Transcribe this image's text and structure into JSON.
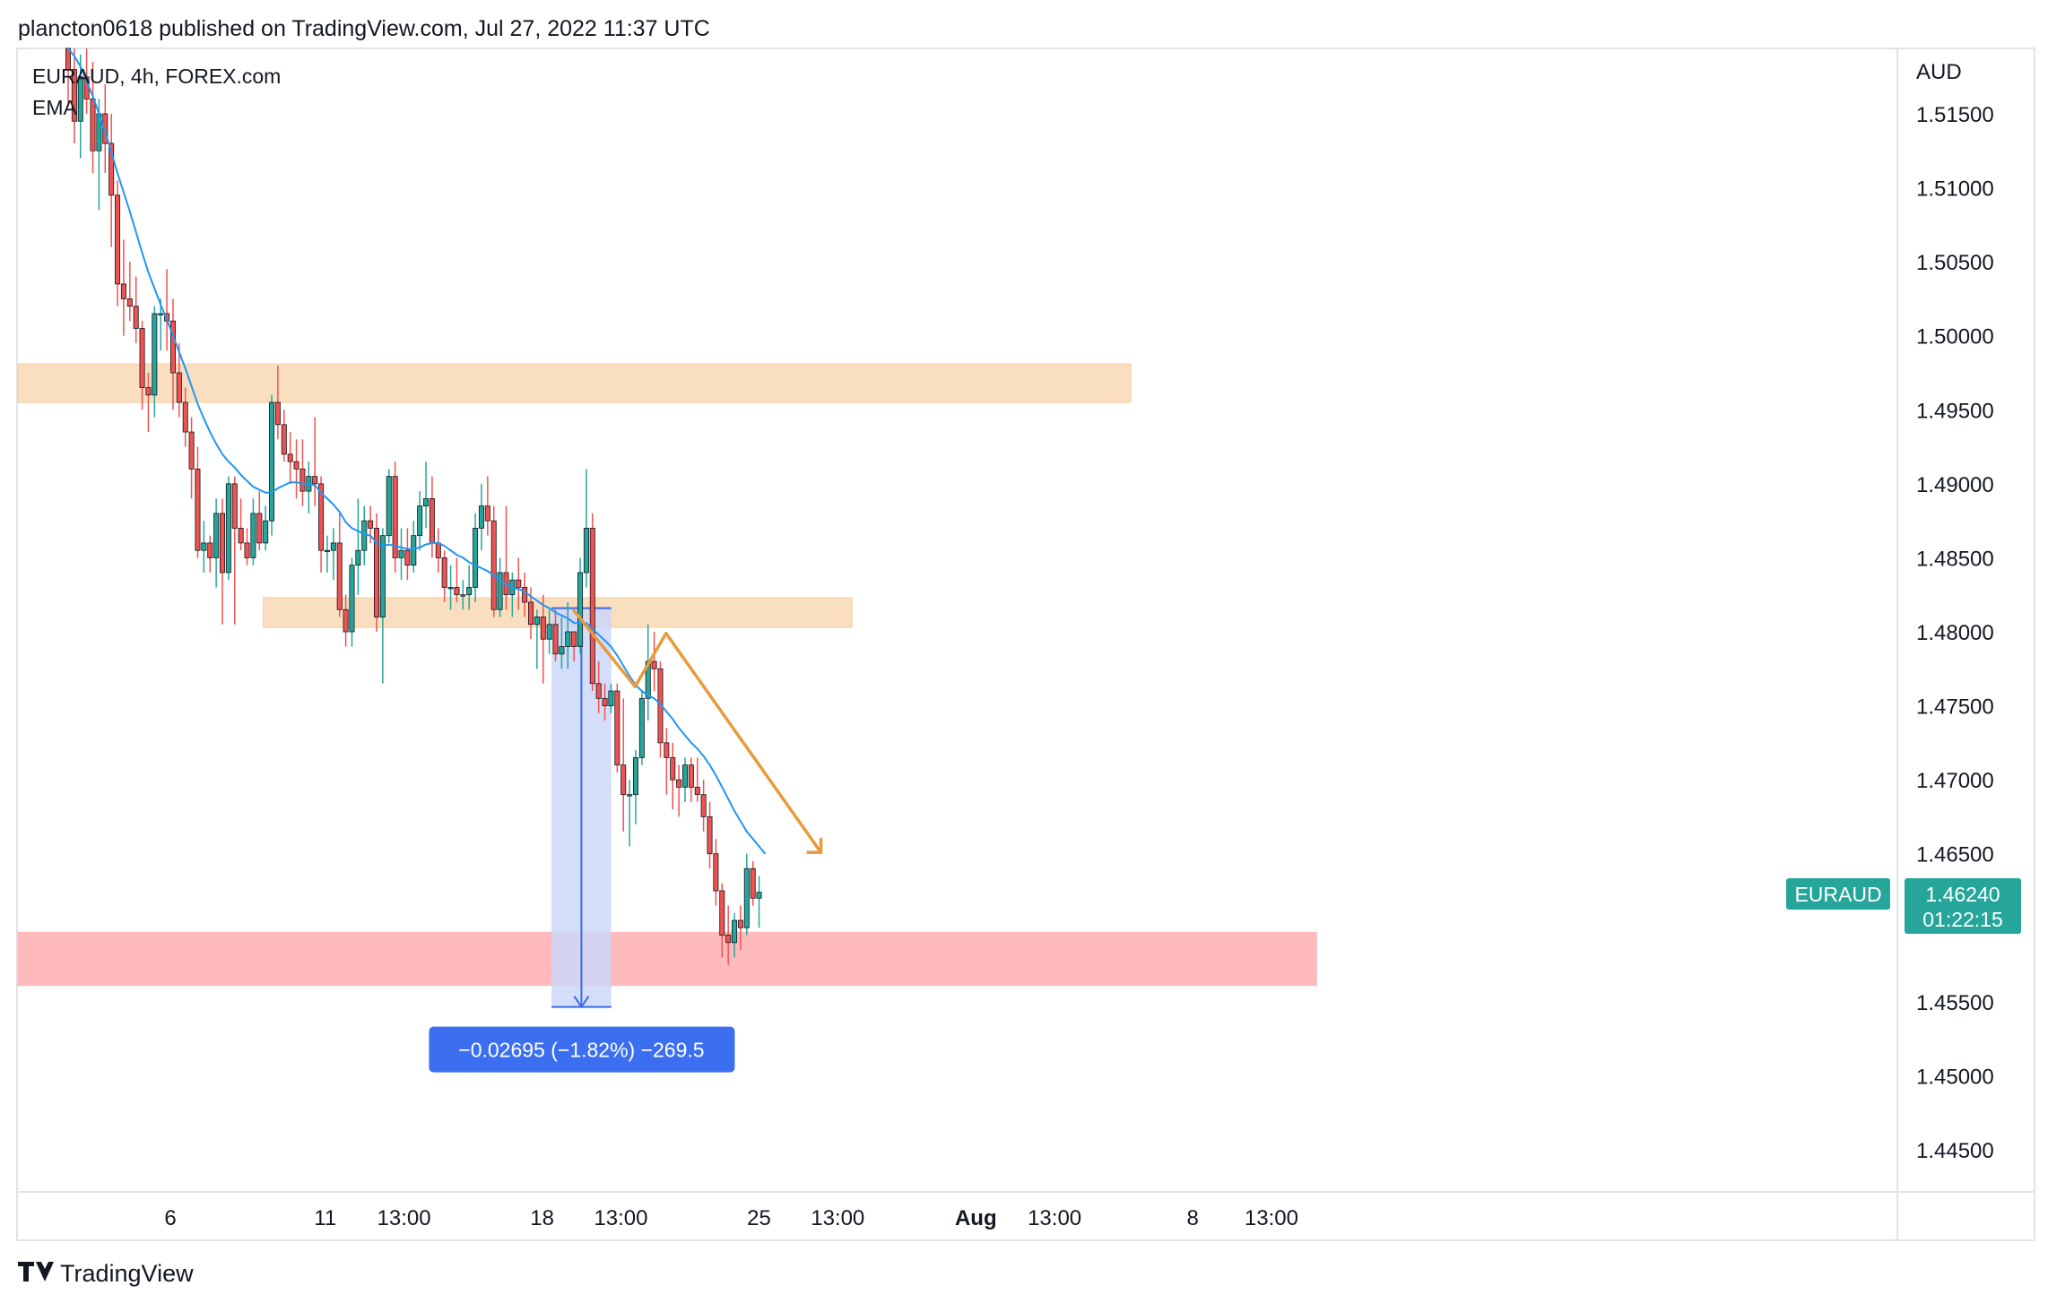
{
  "header": {
    "published_by": "plancton0618 published on TradingView.com, Jul 27, 2022 11:37 UTC"
  },
  "legend": {
    "symbol_line": "EURAUD, 4h, FOREX.com",
    "indicator": "EMA"
  },
  "footer": {
    "brand": "TradingView"
  },
  "colors": {
    "bull": "#26a69a",
    "bear": "#ef5350",
    "ema": "#2196f3",
    "orange_zone": "#f9d9b4",
    "red_zone": "#ffb8b8",
    "measure_fill": "#cdd7f8",
    "measure_line": "#3c6ae8",
    "measure_label_bg": "#3c6ff0",
    "path_line": "#e89a3c",
    "price_badge": "#26a69a"
  },
  "badges": {
    "symbol": "EURAUD",
    "price": "1.46240",
    "countdown": "01:22:15"
  },
  "measure": {
    "label": "−0.02695 (−1.82%) −269.5",
    "from_price": 1.4816,
    "to_price": 1.45465,
    "from_date": "2022-07-19",
    "to_date": "2022-07-20"
  },
  "chart_data": {
    "type": "candlestick",
    "symbol": "EURAUD",
    "interval": "4h",
    "exchange": "FOREX.com",
    "y_axis_label": "AUD",
    "ylim": [
      1.4405,
      1.5195
    ],
    "y_ticks": [
      "1.51500",
      "1.51000",
      "1.50500",
      "1.50000",
      "1.49500",
      "1.49000",
      "1.48500",
      "1.48000",
      "1.47500",
      "1.47000",
      "1.46500",
      "1.45500",
      "1.45000",
      "1.44500"
    ],
    "x_ticks": [
      {
        "label": "6",
        "date": "2022-07-06"
      },
      {
        "label": "11",
        "date": "2022-07-11"
      },
      {
        "label": "13:00",
        "date": "2022-07-13"
      },
      {
        "label": "18",
        "date": "2022-07-18"
      },
      {
        "label": "13:00",
        "date": "2022-07-20"
      },
      {
        "label": "25",
        "date": "2022-07-25"
      },
      {
        "label": "13:00",
        "date": "2022-07-27"
      },
      {
        "label": "Aug",
        "date": "2022-08-01",
        "bold": true
      },
      {
        "label": "13:00",
        "date": "2022-08-03"
      },
      {
        "label": "8",
        "date": "2022-08-08"
      },
      {
        "label": "13:00",
        "date": "2022-08-10"
      }
    ],
    "zones": [
      {
        "kind": "resistance",
        "y_low": 1.4955,
        "y_high": 1.4981,
        "x_from": "2022-07-01",
        "x_to": "2022-08-06"
      },
      {
        "kind": "resistance",
        "y_low": 1.4803,
        "y_high": 1.4823,
        "x_from": "2022-07-09",
        "x_to": "2022-07-28"
      },
      {
        "kind": "support",
        "y_low": 1.4561,
        "y_high": 1.4597,
        "x_from": "2022-07-01",
        "x_to": "2022-08-12"
      }
    ],
    "path": [
      {
        "date": "2022-07-19",
        "price": 1.4815
      },
      {
        "date": "2022-07-21",
        "price": 1.4763
      },
      {
        "date": "2022-07-22",
        "price": 1.4799
      },
      {
        "date": "2022-07-27",
        "price": 1.4651
      }
    ],
    "candles": [
      {
        "o": 1.5195,
        "h": 1.521,
        "l": 1.5155,
        "c": 1.518
      },
      {
        "o": 1.518,
        "h": 1.52,
        "l": 1.513,
        "c": 1.5145
      },
      {
        "o": 1.5145,
        "h": 1.519,
        "l": 1.512,
        "c": 1.5175
      },
      {
        "o": 1.5175,
        "h": 1.5205,
        "l": 1.515,
        "c": 1.516
      },
      {
        "o": 1.516,
        "h": 1.5185,
        "l": 1.511,
        "c": 1.5125
      },
      {
        "o": 1.5125,
        "h": 1.516,
        "l": 1.5085,
        "c": 1.515
      },
      {
        "o": 1.515,
        "h": 1.517,
        "l": 1.511,
        "c": 1.513
      },
      {
        "o": 1.513,
        "h": 1.515,
        "l": 1.506,
        "c": 1.5095
      },
      {
        "o": 1.5095,
        "h": 1.5105,
        "l": 1.502,
        "c": 1.5035
      },
      {
        "o": 1.5035,
        "h": 1.5065,
        "l": 1.5,
        "c": 1.5025
      },
      {
        "o": 1.5025,
        "h": 1.505,
        "l": 1.501,
        "c": 1.502
      },
      {
        "o": 1.502,
        "h": 1.504,
        "l": 1.4995,
        "c": 1.5005
      },
      {
        "o": 1.5005,
        "h": 1.501,
        "l": 1.495,
        "c": 1.4965
      },
      {
        "o": 1.4965,
        "h": 1.4975,
        "l": 1.4935,
        "c": 1.496
      },
      {
        "o": 1.496,
        "h": 1.502,
        "l": 1.4945,
        "c": 1.5015
      },
      {
        "o": 1.5015,
        "h": 1.5025,
        "l": 1.499,
        "c": 1.5015
      },
      {
        "o": 1.5015,
        "h": 1.5045,
        "l": 1.499,
        "c": 1.501
      },
      {
        "o": 1.501,
        "h": 1.5025,
        "l": 1.495,
        "c": 1.4975
      },
      {
        "o": 1.4975,
        "h": 1.4995,
        "l": 1.4945,
        "c": 1.4955
      },
      {
        "o": 1.4955,
        "h": 1.4965,
        "l": 1.4925,
        "c": 1.4935
      },
      {
        "o": 1.4935,
        "h": 1.4945,
        "l": 1.489,
        "c": 1.491
      },
      {
        "o": 1.491,
        "h": 1.4925,
        "l": 1.485,
        "c": 1.4855
      },
      {
        "o": 1.4855,
        "h": 1.4875,
        "l": 1.484,
        "c": 1.486
      },
      {
        "o": 1.486,
        "h": 1.4865,
        "l": 1.484,
        "c": 1.485
      },
      {
        "o": 1.485,
        "h": 1.489,
        "l": 1.483,
        "c": 1.488
      },
      {
        "o": 1.488,
        "h": 1.489,
        "l": 1.4805,
        "c": 1.484
      },
      {
        "o": 1.484,
        "h": 1.4905,
        "l": 1.4835,
        "c": 1.49
      },
      {
        "o": 1.49,
        "h": 1.4905,
        "l": 1.4805,
        "c": 1.487
      },
      {
        "o": 1.487,
        "h": 1.489,
        "l": 1.4855,
        "c": 1.486
      },
      {
        "o": 1.486,
        "h": 1.487,
        "l": 1.4845,
        "c": 1.485
      },
      {
        "o": 1.485,
        "h": 1.489,
        "l": 1.4845,
        "c": 1.488
      },
      {
        "o": 1.488,
        "h": 1.4895,
        "l": 1.4855,
        "c": 1.486
      },
      {
        "o": 1.486,
        "h": 1.4885,
        "l": 1.4855,
        "c": 1.4875
      },
      {
        "o": 1.4875,
        "h": 1.496,
        "l": 1.4865,
        "c": 1.4955
      },
      {
        "o": 1.4955,
        "h": 1.498,
        "l": 1.493,
        "c": 1.494
      },
      {
        "o": 1.494,
        "h": 1.495,
        "l": 1.4915,
        "c": 1.492
      },
      {
        "o": 1.492,
        "h": 1.4935,
        "l": 1.49,
        "c": 1.4915
      },
      {
        "o": 1.4915,
        "h": 1.493,
        "l": 1.489,
        "c": 1.491
      },
      {
        "o": 1.491,
        "h": 1.493,
        "l": 1.4885,
        "c": 1.4895
      },
      {
        "o": 1.4895,
        "h": 1.4915,
        "l": 1.488,
        "c": 1.4905
      },
      {
        "o": 1.4905,
        "h": 1.4945,
        "l": 1.4885,
        "c": 1.49
      },
      {
        "o": 1.49,
        "h": 1.4905,
        "l": 1.484,
        "c": 1.4855
      },
      {
        "o": 1.4855,
        "h": 1.4865,
        "l": 1.484,
        "c": 1.4855
      },
      {
        "o": 1.4855,
        "h": 1.487,
        "l": 1.4835,
        "c": 1.486
      },
      {
        "o": 1.486,
        "h": 1.488,
        "l": 1.481,
        "c": 1.4815
      },
      {
        "o": 1.4815,
        "h": 1.4825,
        "l": 1.479,
        "c": 1.48
      },
      {
        "o": 1.48,
        "h": 1.485,
        "l": 1.479,
        "c": 1.4845
      },
      {
        "o": 1.4845,
        "h": 1.489,
        "l": 1.4825,
        "c": 1.4855
      },
      {
        "o": 1.4855,
        "h": 1.4885,
        "l": 1.4845,
        "c": 1.4875
      },
      {
        "o": 1.4875,
        "h": 1.4885,
        "l": 1.486,
        "c": 1.487
      },
      {
        "o": 1.487,
        "h": 1.488,
        "l": 1.48,
        "c": 1.481
      },
      {
        "o": 1.481,
        "h": 1.487,
        "l": 1.4765,
        "c": 1.4865
      },
      {
        "o": 1.4865,
        "h": 1.491,
        "l": 1.486,
        "c": 1.4905
      },
      {
        "o": 1.4905,
        "h": 1.4915,
        "l": 1.484,
        "c": 1.485
      },
      {
        "o": 1.485,
        "h": 1.487,
        "l": 1.4835,
        "c": 1.4855
      },
      {
        "o": 1.4855,
        "h": 1.487,
        "l": 1.4835,
        "c": 1.4845
      },
      {
        "o": 1.4845,
        "h": 1.4875,
        "l": 1.484,
        "c": 1.4865
      },
      {
        "o": 1.4865,
        "h": 1.4895,
        "l": 1.4855,
        "c": 1.4885
      },
      {
        "o": 1.4885,
        "h": 1.4915,
        "l": 1.487,
        "c": 1.489
      },
      {
        "o": 1.489,
        "h": 1.4905,
        "l": 1.485,
        "c": 1.486
      },
      {
        "o": 1.486,
        "h": 1.487,
        "l": 1.484,
        "c": 1.485
      },
      {
        "o": 1.485,
        "h": 1.4855,
        "l": 1.482,
        "c": 1.483
      },
      {
        "o": 1.483,
        "h": 1.4845,
        "l": 1.4815,
        "c": 1.483
      },
      {
        "o": 1.483,
        "h": 1.485,
        "l": 1.482,
        "c": 1.4825
      },
      {
        "o": 1.4825,
        "h": 1.4835,
        "l": 1.4815,
        "c": 1.4825
      },
      {
        "o": 1.4825,
        "h": 1.4845,
        "l": 1.4815,
        "c": 1.483
      },
      {
        "o": 1.483,
        "h": 1.488,
        "l": 1.482,
        "c": 1.487
      },
      {
        "o": 1.487,
        "h": 1.49,
        "l": 1.4855,
        "c": 1.4885
      },
      {
        "o": 1.4885,
        "h": 1.4905,
        "l": 1.4865,
        "c": 1.4875
      },
      {
        "o": 1.4875,
        "h": 1.4885,
        "l": 1.481,
        "c": 1.4815
      },
      {
        "o": 1.4815,
        "h": 1.485,
        "l": 1.481,
        "c": 1.484
      },
      {
        "o": 1.484,
        "h": 1.4885,
        "l": 1.4815,
        "c": 1.4825
      },
      {
        "o": 1.4825,
        "h": 1.484,
        "l": 1.481,
        "c": 1.4835
      },
      {
        "o": 1.4835,
        "h": 1.485,
        "l": 1.4815,
        "c": 1.483
      },
      {
        "o": 1.483,
        "h": 1.484,
        "l": 1.481,
        "c": 1.482
      },
      {
        "o": 1.482,
        "h": 1.483,
        "l": 1.4795,
        "c": 1.4805
      },
      {
        "o": 1.4805,
        "h": 1.4815,
        "l": 1.4775,
        "c": 1.481
      },
      {
        "o": 1.481,
        "h": 1.4825,
        "l": 1.4765,
        "c": 1.4795
      },
      {
        "o": 1.4795,
        "h": 1.4815,
        "l": 1.4785,
        "c": 1.4805
      },
      {
        "o": 1.4805,
        "h": 1.4815,
        "l": 1.478,
        "c": 1.4785
      },
      {
        "o": 1.4785,
        "h": 1.481,
        "l": 1.4775,
        "c": 1.479
      },
      {
        "o": 1.479,
        "h": 1.482,
        "l": 1.4775,
        "c": 1.48
      },
      {
        "o": 1.48,
        "h": 1.48,
        "l": 1.478,
        "c": 1.479
      },
      {
        "o": 1.479,
        "h": 1.485,
        "l": 1.4785,
        "c": 1.484
      },
      {
        "o": 1.484,
        "h": 1.491,
        "l": 1.483,
        "c": 1.487
      },
      {
        "o": 1.487,
        "h": 1.488,
        "l": 1.476,
        "c": 1.4765
      },
      {
        "o": 1.4765,
        "h": 1.478,
        "l": 1.4745,
        "c": 1.4755
      },
      {
        "o": 1.4755,
        "h": 1.4765,
        "l": 1.474,
        "c": 1.475
      },
      {
        "o": 1.475,
        "h": 1.4765,
        "l": 1.4745,
        "c": 1.476
      },
      {
        "o": 1.476,
        "h": 1.4765,
        "l": 1.4705,
        "c": 1.471
      },
      {
        "o": 1.471,
        "h": 1.4755,
        "l": 1.4665,
        "c": 1.469
      },
      {
        "o": 1.469,
        "h": 1.47,
        "l": 1.4655,
        "c": 1.469
      },
      {
        "o": 1.469,
        "h": 1.472,
        "l": 1.467,
        "c": 1.4715
      },
      {
        "o": 1.4715,
        "h": 1.476,
        "l": 1.471,
        "c": 1.4755
      },
      {
        "o": 1.4755,
        "h": 1.4805,
        "l": 1.474,
        "c": 1.478
      },
      {
        "o": 1.478,
        "h": 1.48,
        "l": 1.476,
        "c": 1.4775
      },
      {
        "o": 1.4775,
        "h": 1.478,
        "l": 1.4715,
        "c": 1.4725
      },
      {
        "o": 1.4725,
        "h": 1.4735,
        "l": 1.469,
        "c": 1.4715
      },
      {
        "o": 1.4715,
        "h": 1.4725,
        "l": 1.468,
        "c": 1.47
      },
      {
        "o": 1.47,
        "h": 1.471,
        "l": 1.4675,
        "c": 1.4695
      },
      {
        "o": 1.4695,
        "h": 1.4715,
        "l": 1.4685,
        "c": 1.471
      },
      {
        "o": 1.471,
        "h": 1.4715,
        "l": 1.4685,
        "c": 1.4695
      },
      {
        "o": 1.4695,
        "h": 1.4715,
        "l": 1.4685,
        "c": 1.469
      },
      {
        "o": 1.469,
        "h": 1.47,
        "l": 1.4665,
        "c": 1.4675
      },
      {
        "o": 1.4675,
        "h": 1.4685,
        "l": 1.464,
        "c": 1.465
      },
      {
        "o": 1.465,
        "h": 1.466,
        "l": 1.4615,
        "c": 1.4625
      },
      {
        "o": 1.4625,
        "h": 1.463,
        "l": 1.458,
        "c": 1.4595
      },
      {
        "o": 1.4595,
        "h": 1.4615,
        "l": 1.4575,
        "c": 1.459
      },
      {
        "o": 1.459,
        "h": 1.461,
        "l": 1.458,
        "c": 1.4605
      },
      {
        "o": 1.4605,
        "h": 1.4615,
        "l": 1.4585,
        "c": 1.46
      },
      {
        "o": 1.46,
        "h": 1.465,
        "l": 1.4595,
        "c": 1.464
      },
      {
        "o": 1.464,
        "h": 1.4645,
        "l": 1.4615,
        "c": 1.462
      },
      {
        "o": 1.462,
        "h": 1.4635,
        "l": 1.46,
        "c": 1.4624
      }
    ],
    "ema": [
      1.52,
      1.5189,
      1.5182,
      1.5172,
      1.5162,
      1.515,
      1.5138,
      1.5124,
      1.511,
      1.5097,
      1.5084,
      1.507,
      1.5056,
      1.5043,
      1.5032,
      1.5021,
      1.5011,
      1.5,
      1.4989,
      1.4978,
      1.4966,
      1.4954,
      1.4944,
      1.4935,
      1.4927,
      1.492,
      1.4915,
      1.4911,
      1.4906,
      1.4902,
      1.4898,
      1.4896,
      1.4894,
      1.4894,
      1.4897,
      1.4899,
      1.4901,
      1.4901,
      1.49,
      1.49,
      1.4899,
      1.4894,
      1.489,
      1.4886,
      1.4881,
      1.4874,
      1.487,
      1.4868,
      1.4866,
      1.4865,
      1.486,
      1.4858,
      1.4859,
      1.4858,
      1.4857,
      1.4856,
      1.4856,
      1.4857,
      1.4859,
      1.486,
      1.486,
      1.4858,
      1.4855,
      1.4852,
      1.485,
      1.4847,
      1.4845,
      1.4843,
      1.4841,
      1.4838,
      1.4835,
      1.4832,
      1.483,
      1.4829,
      1.4827,
      1.4824,
      1.4821,
      1.4818,
      1.4816,
      1.4813,
      1.4811,
      1.4809,
      1.4806,
      1.4806,
      1.4806,
      1.4802,
      1.4798,
      1.4794,
      1.479,
      1.4784,
      1.4777,
      1.477,
      1.4764,
      1.476,
      1.4757,
      1.4755,
      1.4751,
      1.4746,
      1.4741,
      1.4735,
      1.473,
      1.4725,
      1.4721,
      1.4716,
      1.471,
      1.4703,
      1.4695,
      1.4687,
      1.4679,
      1.4672,
      1.4665,
      1.466,
      1.4655,
      1.465
    ]
  }
}
